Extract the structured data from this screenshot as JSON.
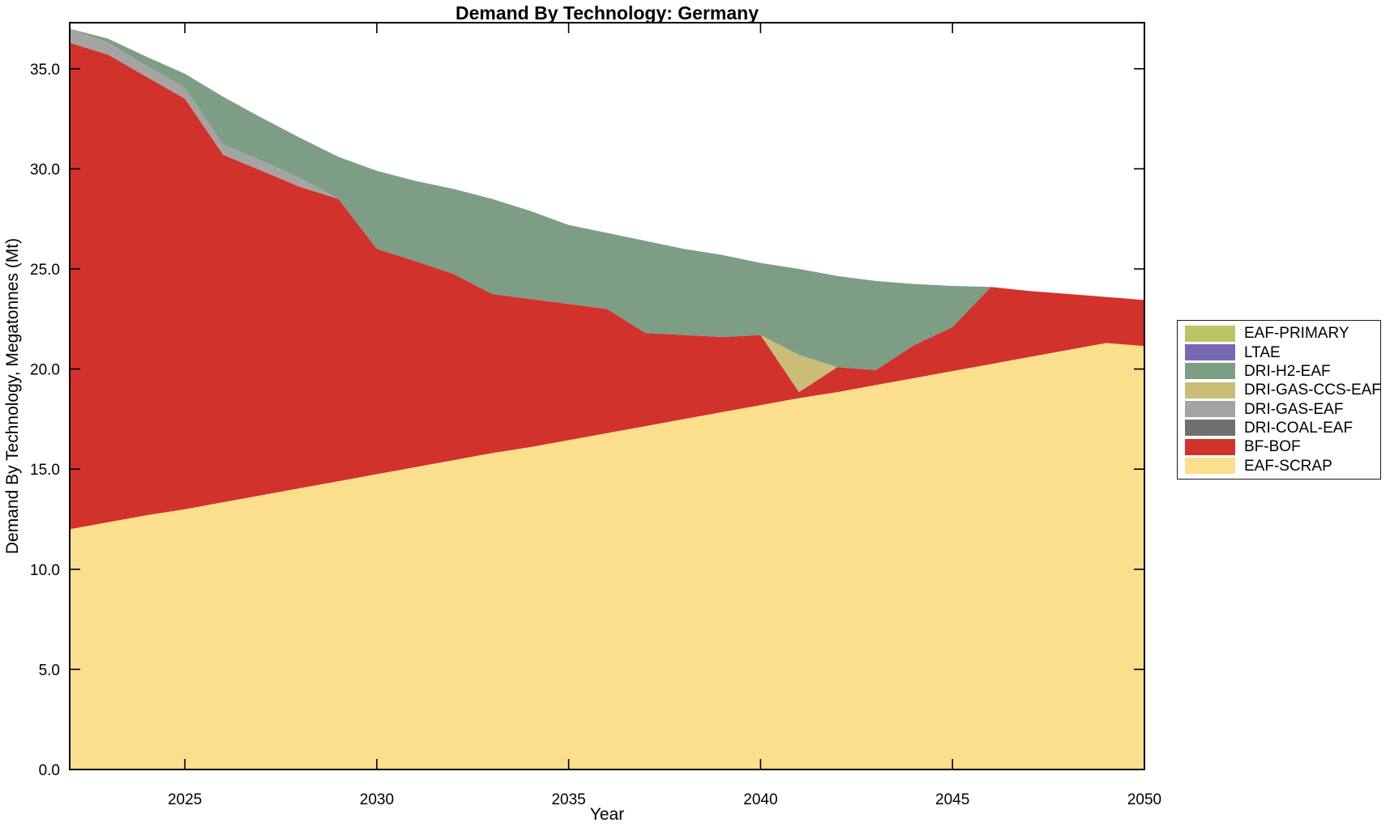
{
  "window": {
    "background": "#ffffff"
  },
  "chart_data": {
    "type": "area",
    "stacked": true,
    "title": "Demand By Technology: Germany",
    "xlabel": "Year",
    "ylabel": "Demand By Technology, Megatonnes (Mt)",
    "grid": false,
    "legend_position": "right-outside",
    "axis_color": "#000000",
    "xlim": [
      2022,
      2050
    ],
    "ylim": [
      0,
      37.3
    ],
    "xticks": [
      2025,
      2030,
      2035,
      2040,
      2045,
      2050
    ],
    "xtick_labels": [
      "2025",
      "2030",
      "2035",
      "2040",
      "2045",
      "2050"
    ],
    "yticks": [
      0,
      5,
      10,
      15,
      20,
      25,
      30,
      35
    ],
    "ytick_labels": [
      "0.0",
      "5.0",
      "10.0",
      "15.0",
      "20.0",
      "25.0",
      "30.0",
      "35.0"
    ],
    "x": [
      2022,
      2023,
      2024,
      2025,
      2026,
      2027,
      2028,
      2029,
      2030,
      2031,
      2032,
      2033,
      2034,
      2035,
      2036,
      2037,
      2038,
      2039,
      2040,
      2041,
      2042,
      2043,
      2044,
      2045,
      2046,
      2047,
      2048,
      2049,
      2050
    ],
    "series": [
      {
        "name": "EAF-SCRAP",
        "color": "#fbdf8d",
        "values": [
          12.0,
          12.35,
          12.7,
          13.0,
          13.35,
          13.7,
          14.05,
          14.4,
          14.75,
          15.1,
          15.45,
          15.8,
          16.1,
          16.45,
          16.8,
          17.15,
          17.5,
          17.85,
          18.2,
          18.55,
          18.85,
          19.2,
          19.55,
          19.9,
          20.25,
          20.6,
          20.95,
          21.3,
          21.15
        ]
      },
      {
        "name": "BF-BOF",
        "color": "#d2322c",
        "values": [
          24.3,
          23.35,
          21.9,
          20.5,
          17.35,
          16.2,
          15.05,
          14.1,
          11.25,
          10.3,
          9.3,
          7.95,
          7.4,
          6.8,
          6.2,
          4.65,
          4.2,
          3.75,
          3.5,
          0.3,
          1.25,
          0.75,
          1.65,
          2.2,
          3.85,
          3.3,
          2.8,
          2.3,
          2.3
        ]
      },
      {
        "name": "DRI-COAL-EAF",
        "color": "#6f6f6f",
        "values": [
          0,
          0,
          0,
          0,
          0,
          0,
          0,
          0,
          0,
          0,
          0,
          0,
          0,
          0,
          0,
          0,
          0,
          0,
          0,
          0,
          0,
          0,
          0,
          0,
          0,
          0,
          0,
          0,
          0
        ]
      },
      {
        "name": "DRI-GAS-EAF",
        "color": "#a5a4a2",
        "values": [
          0.7,
          0.6,
          0.55,
          0.55,
          0.5,
          0.5,
          0.45,
          0,
          0,
          0,
          0,
          0,
          0,
          0,
          0,
          0,
          0,
          0,
          0,
          0,
          0,
          0,
          0,
          0,
          0,
          0,
          0,
          0,
          0
        ]
      },
      {
        "name": "DRI-GAS-CCS-EAF",
        "color": "#cabe76",
        "values": [
          0,
          0,
          0,
          0,
          0,
          0,
          0,
          0,
          0,
          0,
          0,
          0,
          0,
          0,
          0,
          0,
          0,
          0,
          0,
          1.85,
          0,
          0,
          0,
          0,
          0,
          0,
          0,
          0,
          0
        ]
      },
      {
        "name": "DRI-H2-EAF",
        "color": "#7d9e85",
        "values": [
          0,
          0.2,
          0.45,
          0.7,
          2.4,
          2.15,
          2.0,
          2.1,
          3.9,
          4.0,
          4.25,
          4.75,
          4.4,
          3.95,
          3.8,
          4.6,
          4.3,
          4.1,
          3.6,
          4.3,
          4.55,
          4.45,
          3.05,
          2.05,
          0,
          0,
          0,
          0,
          0
        ]
      },
      {
        "name": "LTAE",
        "color": "#7568b4",
        "values": [
          0,
          0,
          0,
          0,
          0,
          0,
          0,
          0,
          0,
          0,
          0,
          0,
          0,
          0,
          0,
          0,
          0,
          0,
          0,
          0,
          0,
          0,
          0,
          0,
          0,
          0,
          0,
          0,
          0
        ]
      },
      {
        "name": "EAF-PRIMARY",
        "color": "#b9c465",
        "values": [
          0,
          0,
          0,
          0,
          0,
          0,
          0,
          0,
          0,
          0,
          0,
          0,
          0,
          0,
          0,
          0,
          0,
          0,
          0,
          0,
          0,
          0,
          0,
          0,
          0,
          0,
          0,
          0,
          0
        ]
      }
    ],
    "legend_entries_top_to_bottom": [
      "EAF-PRIMARY",
      "LTAE",
      "DRI-H2-EAF",
      "DRI-GAS-CCS-EAF",
      "DRI-GAS-EAF",
      "DRI-COAL-EAF",
      "BF-BOF",
      "EAF-SCRAP"
    ]
  }
}
